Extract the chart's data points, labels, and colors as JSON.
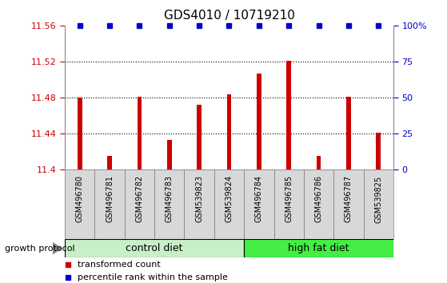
{
  "title": "GDS4010 / 10719210",
  "samples": [
    "GSM496780",
    "GSM496781",
    "GSM496782",
    "GSM496783",
    "GSM539823",
    "GSM539824",
    "GSM496784",
    "GSM496785",
    "GSM496786",
    "GSM496787",
    "GSM539825"
  ],
  "bar_values": [
    11.48,
    11.415,
    11.481,
    11.433,
    11.472,
    11.484,
    11.507,
    11.521,
    11.415,
    11.481,
    11.441
  ],
  "percentile_values": [
    100,
    100,
    100,
    100,
    100,
    100,
    100,
    100,
    100,
    100,
    100
  ],
  "bar_color": "#cc0000",
  "percentile_color": "#0000cc",
  "ylim_left": [
    11.4,
    11.56
  ],
  "ylim_right": [
    0,
    100
  ],
  "yticks_left": [
    11.4,
    11.44,
    11.48,
    11.52,
    11.56
  ],
  "yticks_right": [
    0,
    25,
    50,
    75,
    100
  ],
  "ytick_labels_right": [
    "0",
    "25",
    "50",
    "75",
    "100%"
  ],
  "control_diet_count": 6,
  "high_fat_diet_count": 5,
  "control_diet_label": "control diet",
  "high_fat_diet_label": "high fat diet",
  "growth_protocol_label": "growth protocol",
  "legend_bar_label": "transformed count",
  "legend_dot_label": "percentile rank within the sample",
  "control_diet_color": "#c8f0c8",
  "high_fat_diet_color": "#44ee44",
  "bar_width": 0.15,
  "xticklabel_fontsize": 7,
  "left_tick_color": "#cc0000",
  "right_tick_color": "#0000cc",
  "ylabel_fontsize": 8,
  "title_fontsize": 11,
  "arrow_color": "#888888"
}
